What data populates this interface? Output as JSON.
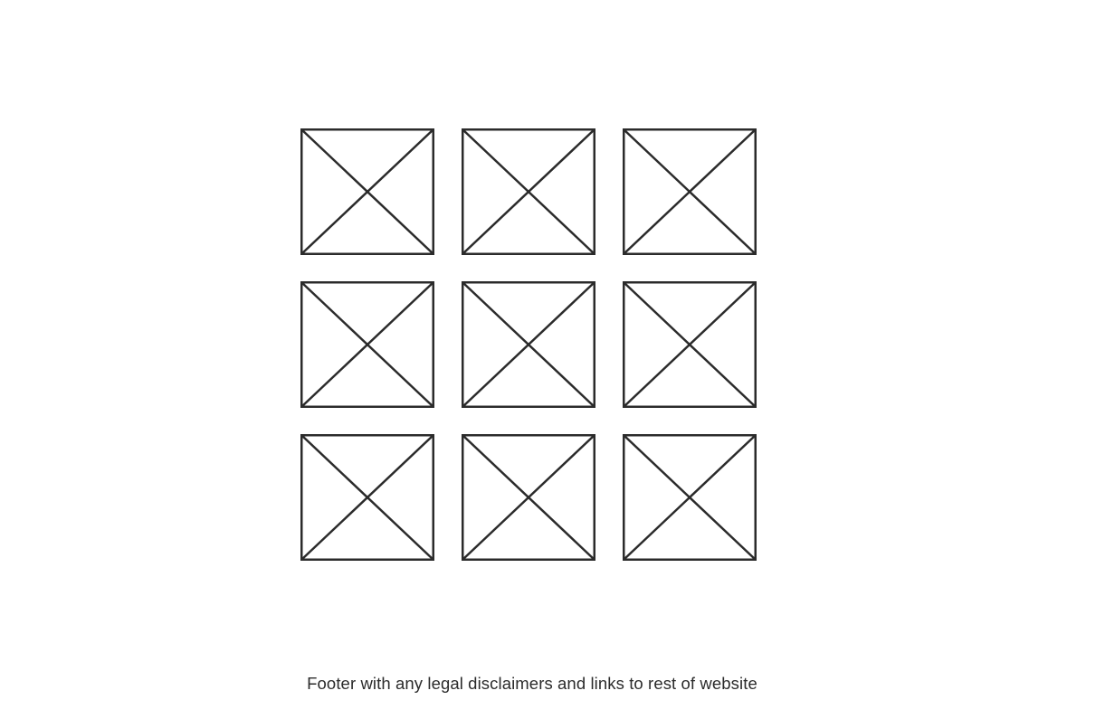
{
  "gallery": {
    "items": [
      {
        "icon": "image-placeholder-icon"
      },
      {
        "icon": "image-placeholder-icon"
      },
      {
        "icon": "image-placeholder-icon"
      },
      {
        "icon": "image-placeholder-icon"
      },
      {
        "icon": "image-placeholder-icon"
      },
      {
        "icon": "image-placeholder-icon"
      },
      {
        "icon": "image-placeholder-icon"
      },
      {
        "icon": "image-placeholder-icon"
      },
      {
        "icon": "image-placeholder-icon"
      }
    ]
  },
  "footer": {
    "text": "Footer with any legal disclaimers and links to rest of website"
  },
  "colors": {
    "stroke": "#2b2b2b",
    "background": "#ffffff"
  }
}
